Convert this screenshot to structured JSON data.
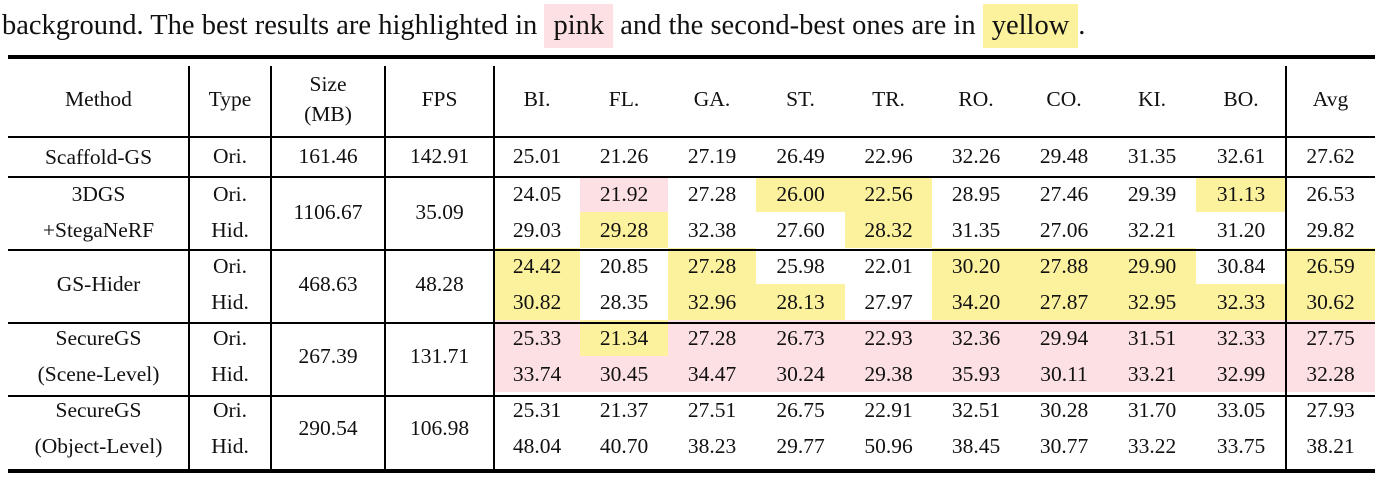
{
  "caption": {
    "before": "background. The best results are highlighted in",
    "pink_label": "pink",
    "middle": "and the second-best ones are in",
    "yellow_label": "yellow",
    "after": "."
  },
  "colors": {
    "best": "#fde0e3",
    "second_best": "#fcf19d"
  },
  "table": {
    "headers": {
      "method": "Method",
      "type": "Type",
      "size_line1": "Size",
      "size_line2": "(MB)",
      "fps": "FPS",
      "scenes": [
        "BI.",
        "FL.",
        "GA.",
        "ST.",
        "TR.",
        "RO.",
        "CO.",
        "KI.",
        "BO."
      ],
      "avg": "Avg"
    },
    "groups": [
      {
        "method_line1": "Scaffold-GS",
        "method_line2": "",
        "size": "161.46",
        "fps": "142.91",
        "rows": [
          {
            "type": "Ori.",
            "values": [
              "25.01",
              "21.26",
              "27.19",
              "26.49",
              "22.96",
              "32.26",
              "29.48",
              "31.35",
              "32.61"
            ],
            "avg": "27.62",
            "highlight": [
              "",
              "",
              "",
              "",
              "",
              "",
              "",
              "",
              ""
            ],
            "avg_highlight": ""
          }
        ]
      },
      {
        "method_line1": "3DGS",
        "method_line2": "+StegaNeRF",
        "size": "1106.67",
        "fps": "35.09",
        "rows": [
          {
            "type": "Ori.",
            "values": [
              "24.05",
              "21.92",
              "27.28",
              "26.00",
              "22.56",
              "28.95",
              "27.46",
              "29.39",
              "31.13"
            ],
            "avg": "26.53",
            "highlight": [
              "",
              "pink",
              "",
              "yellow",
              "yellow",
              "",
              "",
              "",
              "yellow"
            ],
            "avg_highlight": ""
          },
          {
            "type": "Hid.",
            "values": [
              "29.03",
              "29.28",
              "32.38",
              "27.60",
              "28.32",
              "31.35",
              "27.06",
              "32.21",
              "31.20"
            ],
            "avg": "29.82",
            "highlight": [
              "",
              "yellow",
              "",
              "",
              "yellow",
              "",
              "",
              "",
              ""
            ],
            "avg_highlight": ""
          }
        ]
      },
      {
        "method_line1": "GS-Hider",
        "method_line2": "",
        "size": "468.63",
        "fps": "48.28",
        "rows": [
          {
            "type": "Ori.",
            "values": [
              "24.42",
              "20.85",
              "27.28",
              "25.98",
              "22.01",
              "30.20",
              "27.88",
              "29.90",
              "30.84"
            ],
            "avg": "26.59",
            "highlight": [
              "yellow",
              "",
              "yellow",
              "",
              "",
              "yellow",
              "yellow",
              "yellow",
              ""
            ],
            "avg_highlight": "yellow"
          },
          {
            "type": "Hid.",
            "values": [
              "30.82",
              "28.35",
              "32.96",
              "28.13",
              "27.97",
              "34.20",
              "27.87",
              "32.95",
              "32.33"
            ],
            "avg": "30.62",
            "highlight": [
              "yellow",
              "",
              "yellow",
              "yellow",
              "",
              "yellow",
              "yellow",
              "yellow",
              "yellow"
            ],
            "avg_highlight": "yellow"
          }
        ]
      },
      {
        "method_line1": "SecureGS",
        "method_line2": "(Scene-Level)",
        "size": "267.39",
        "fps": "131.71",
        "rows": [
          {
            "type": "Ori.",
            "values": [
              "25.33",
              "21.34",
              "27.28",
              "26.73",
              "22.93",
              "32.36",
              "29.94",
              "31.51",
              "32.33"
            ],
            "avg": "27.75",
            "highlight": [
              "pink",
              "yellow",
              "pink",
              "pink",
              "pink",
              "pink",
              "pink",
              "pink",
              "pink"
            ],
            "avg_highlight": "pink"
          },
          {
            "type": "Hid.",
            "values": [
              "33.74",
              "30.45",
              "34.47",
              "30.24",
              "29.38",
              "35.93",
              "30.11",
              "33.21",
              "32.99"
            ],
            "avg": "32.28",
            "highlight": [
              "pink",
              "pink",
              "pink",
              "pink",
              "pink",
              "pink",
              "pink",
              "pink",
              "pink"
            ],
            "avg_highlight": "pink"
          }
        ]
      },
      {
        "method_line1": "SecureGS",
        "method_line2": "(Object-Level)",
        "size": "290.54",
        "fps": "106.98",
        "rows": [
          {
            "type": "Ori.",
            "values": [
              "25.31",
              "21.37",
              "27.51",
              "26.75",
              "22.91",
              "32.51",
              "30.28",
              "31.70",
              "33.05"
            ],
            "avg": "27.93",
            "highlight": [
              "",
              "",
              "",
              "",
              "",
              "",
              "",
              "",
              ""
            ],
            "avg_highlight": ""
          },
          {
            "type": "Hid.",
            "values": [
              "48.04",
              "40.70",
              "38.23",
              "29.77",
              "50.96",
              "38.45",
              "30.77",
              "33.22",
              "33.75"
            ],
            "avg": "38.21",
            "highlight": [
              "",
              "",
              "",
              "",
              "",
              "",
              "",
              "",
              ""
            ],
            "avg_highlight": ""
          }
        ]
      }
    ]
  }
}
